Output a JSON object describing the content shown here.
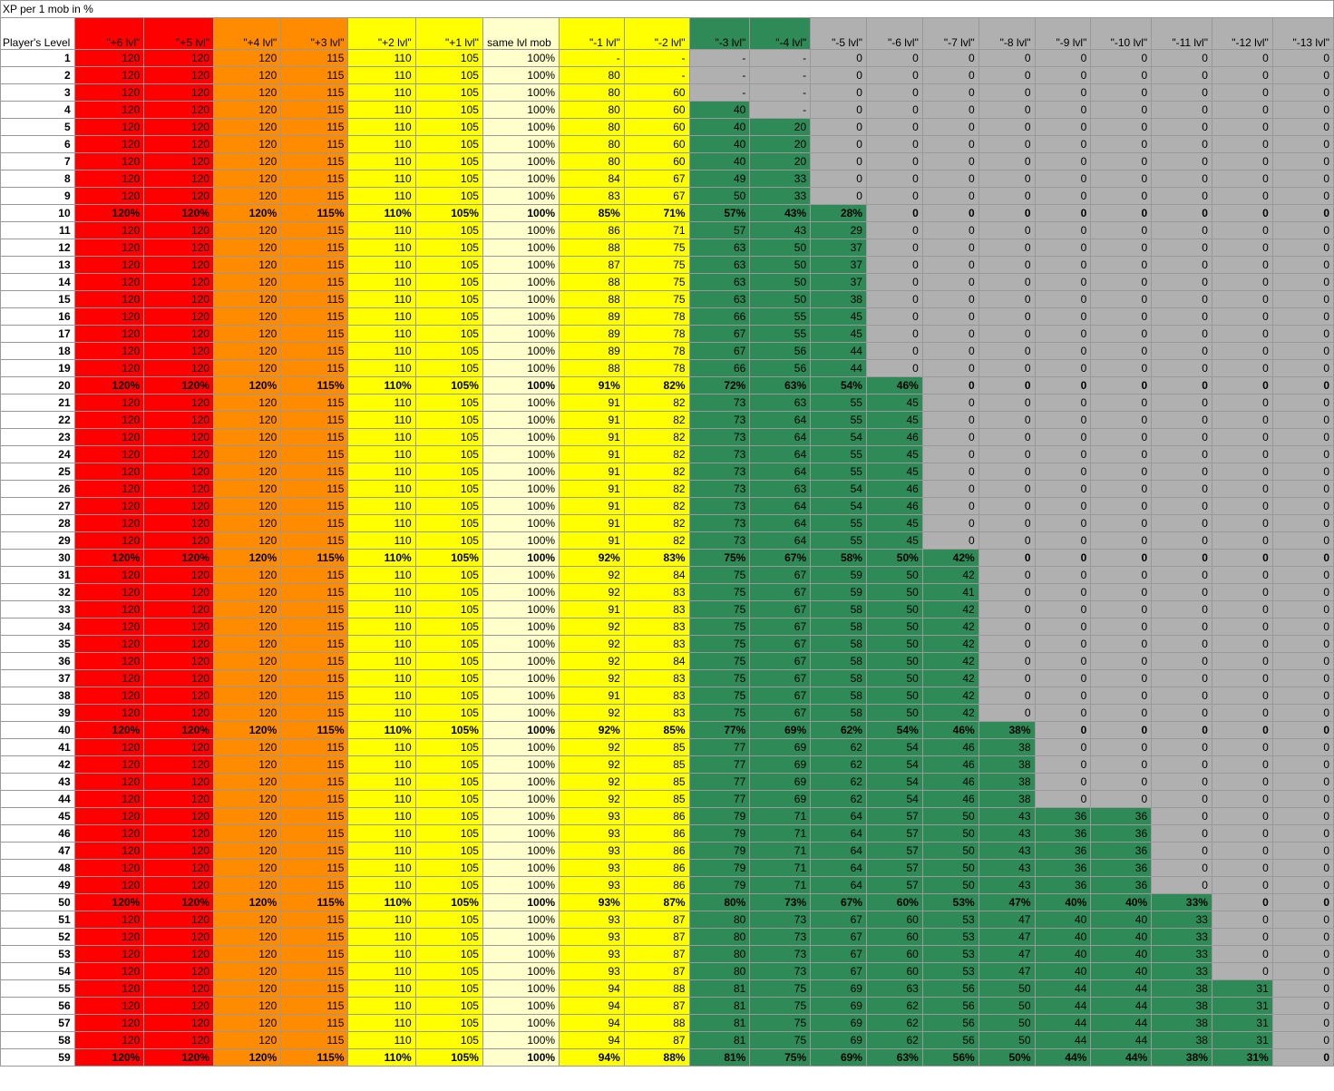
{
  "title": "XP per 1 mob in %",
  "levelHeader": "Player's Level",
  "columns": [
    "\"+6 lvl\"",
    "\"+5 lvl\"",
    "\"+4 lvl\"",
    "\"+3 lvl\"",
    "\"+2 lvl\"",
    "\"+1 lvl\"",
    "same lvl mob",
    "\"-1 lvl\"",
    "\"-2 lvl\"",
    "\"-3 lvl\"",
    "\"-4 lvl\"",
    "\"-5 lvl\"",
    "\"-6 lvl\"",
    "\"-7 lvl\"",
    "\"-8 lvl\"",
    "\"-9 lvl\"",
    "\"-10 lvl\"",
    "\"-11 lvl\"",
    "\"-12 lvl\"",
    "\"-13 lvl\""
  ],
  "colors": {
    "red": "#ff0000",
    "orange": "#ff8c00",
    "yellow": "#ffff00",
    "cream": "#ffffcc",
    "green": "#2e8b57",
    "gray": "#b0b0b0",
    "white": "#ffffff"
  },
  "headerBg": [
    "red",
    "red",
    "orange",
    "orange",
    "yellow",
    "yellow",
    "cream",
    "yellow",
    "yellow",
    "green",
    "green",
    "gray",
    "gray",
    "gray",
    "gray",
    "gray",
    "gray",
    "gray",
    "gray",
    "gray"
  ],
  "baseCols": [
    "120",
    "120",
    "120",
    "115",
    "110",
    "105",
    "100%"
  ],
  "milestonePct": [
    "120%",
    "120%",
    "120%",
    "115%",
    "110%",
    "105%",
    "100%"
  ],
  "rows": [
    {
      "lvl": 1,
      "t": [
        "-",
        "-",
        "-",
        "-",
        "0",
        "0",
        "0",
        "0",
        "0",
        "0",
        "0",
        "0",
        "0"
      ],
      "n": 0
    },
    {
      "lvl": 2,
      "t": [
        "80",
        "-",
        "-",
        "-",
        "0",
        "0",
        "0",
        "0",
        "0",
        "0",
        "0",
        "0",
        "0"
      ],
      "n": 0
    },
    {
      "lvl": 3,
      "t": [
        "80",
        "60",
        "-",
        "-",
        "0",
        "0",
        "0",
        "0",
        "0",
        "0",
        "0",
        "0",
        "0"
      ],
      "n": 0
    },
    {
      "lvl": 4,
      "t": [
        "80",
        "60",
        "40",
        "-",
        "0",
        "0",
        "0",
        "0",
        "0",
        "0",
        "0",
        "0",
        "0"
      ],
      "n": 1
    },
    {
      "lvl": 5,
      "t": [
        "80",
        "60",
        "40",
        "20",
        "0",
        "0",
        "0",
        "0",
        "0",
        "0",
        "0",
        "0",
        "0"
      ],
      "n": 2
    },
    {
      "lvl": 6,
      "t": [
        "80",
        "60",
        "40",
        "20",
        "0",
        "0",
        "0",
        "0",
        "0",
        "0",
        "0",
        "0",
        "0"
      ],
      "n": 2
    },
    {
      "lvl": 7,
      "t": [
        "80",
        "60",
        "40",
        "20",
        "0",
        "0",
        "0",
        "0",
        "0",
        "0",
        "0",
        "0",
        "0"
      ],
      "n": 2
    },
    {
      "lvl": 8,
      "t": [
        "84",
        "67",
        "49",
        "33",
        "0",
        "0",
        "0",
        "0",
        "0",
        "0",
        "0",
        "0",
        "0"
      ],
      "n": 2
    },
    {
      "lvl": 9,
      "t": [
        "83",
        "67",
        "50",
        "33",
        "0",
        "0",
        "0",
        "0",
        "0",
        "0",
        "0",
        "0",
        "0"
      ],
      "n": 2
    },
    {
      "lvl": 10,
      "m": true,
      "t": [
        "85%",
        "71%",
        "57%",
        "43%",
        "28%",
        "0",
        "0",
        "0",
        "0",
        "0",
        "0",
        "0",
        "0"
      ],
      "n": 3
    },
    {
      "lvl": 11,
      "t": [
        "86",
        "71",
        "57",
        "43",
        "29",
        "0",
        "0",
        "0",
        "0",
        "0",
        "0",
        "0",
        "0"
      ],
      "n": 3
    },
    {
      "lvl": 12,
      "t": [
        "88",
        "75",
        "63",
        "50",
        "37",
        "0",
        "0",
        "0",
        "0",
        "0",
        "0",
        "0",
        "0"
      ],
      "n": 3
    },
    {
      "lvl": 13,
      "t": [
        "87",
        "75",
        "63",
        "50",
        "37",
        "0",
        "0",
        "0",
        "0",
        "0",
        "0",
        "0",
        "0"
      ],
      "n": 3
    },
    {
      "lvl": 14,
      "t": [
        "88",
        "75",
        "63",
        "50",
        "37",
        "0",
        "0",
        "0",
        "0",
        "0",
        "0",
        "0",
        "0"
      ],
      "n": 3
    },
    {
      "lvl": 15,
      "t": [
        "88",
        "75",
        "63",
        "50",
        "38",
        "0",
        "0",
        "0",
        "0",
        "0",
        "0",
        "0",
        "0"
      ],
      "n": 3
    },
    {
      "lvl": 16,
      "t": [
        "89",
        "78",
        "66",
        "55",
        "45",
        "0",
        "0",
        "0",
        "0",
        "0",
        "0",
        "0",
        "0"
      ],
      "n": 3
    },
    {
      "lvl": 17,
      "t": [
        "89",
        "78",
        "67",
        "55",
        "45",
        "0",
        "0",
        "0",
        "0",
        "0",
        "0",
        "0",
        "0"
      ],
      "n": 3
    },
    {
      "lvl": 18,
      "t": [
        "89",
        "78",
        "67",
        "56",
        "44",
        "0",
        "0",
        "0",
        "0",
        "0",
        "0",
        "0",
        "0"
      ],
      "n": 3
    },
    {
      "lvl": 19,
      "t": [
        "88",
        "78",
        "66",
        "56",
        "44",
        "0",
        "0",
        "0",
        "0",
        "0",
        "0",
        "0",
        "0"
      ],
      "n": 3
    },
    {
      "lvl": 20,
      "m": true,
      "t": [
        "91%",
        "82%",
        "72%",
        "63%",
        "54%",
        "46%",
        "0",
        "0",
        "0",
        "0",
        "0",
        "0",
        "0"
      ],
      "n": 4
    },
    {
      "lvl": 21,
      "t": [
        "91",
        "82",
        "73",
        "63",
        "55",
        "45",
        "0",
        "0",
        "0",
        "0",
        "0",
        "0",
        "0"
      ],
      "n": 4
    },
    {
      "lvl": 22,
      "t": [
        "91",
        "82",
        "73",
        "64",
        "55",
        "45",
        "0",
        "0",
        "0",
        "0",
        "0",
        "0",
        "0"
      ],
      "n": 4
    },
    {
      "lvl": 23,
      "t": [
        "91",
        "82",
        "73",
        "64",
        "54",
        "46",
        "0",
        "0",
        "0",
        "0",
        "0",
        "0",
        "0"
      ],
      "n": 4
    },
    {
      "lvl": 24,
      "t": [
        "91",
        "82",
        "73",
        "64",
        "55",
        "45",
        "0",
        "0",
        "0",
        "0",
        "0",
        "0",
        "0"
      ],
      "n": 4
    },
    {
      "lvl": 25,
      "t": [
        "91",
        "82",
        "73",
        "64",
        "55",
        "45",
        "0",
        "0",
        "0",
        "0",
        "0",
        "0",
        "0"
      ],
      "n": 4
    },
    {
      "lvl": 26,
      "t": [
        "91",
        "82",
        "73",
        "63",
        "54",
        "46",
        "0",
        "0",
        "0",
        "0",
        "0",
        "0",
        "0"
      ],
      "n": 4
    },
    {
      "lvl": 27,
      "t": [
        "91",
        "82",
        "73",
        "64",
        "54",
        "46",
        "0",
        "0",
        "0",
        "0",
        "0",
        "0",
        "0"
      ],
      "n": 4
    },
    {
      "lvl": 28,
      "t": [
        "91",
        "82",
        "73",
        "64",
        "55",
        "45",
        "0",
        "0",
        "0",
        "0",
        "0",
        "0",
        "0"
      ],
      "n": 4
    },
    {
      "lvl": 29,
      "t": [
        "91",
        "82",
        "73",
        "64",
        "55",
        "45",
        "0",
        "0",
        "0",
        "0",
        "0",
        "0",
        "0"
      ],
      "n": 4
    },
    {
      "lvl": 30,
      "m": true,
      "t": [
        "92%",
        "83%",
        "75%",
        "67%",
        "58%",
        "50%",
        "42%",
        "0",
        "0",
        "0",
        "0",
        "0",
        "0"
      ],
      "n": 5
    },
    {
      "lvl": 31,
      "t": [
        "92",
        "84",
        "75",
        "67",
        "59",
        "50",
        "42",
        "0",
        "0",
        "0",
        "0",
        "0",
        "0"
      ],
      "n": 5
    },
    {
      "lvl": 32,
      "t": [
        "92",
        "83",
        "75",
        "67",
        "59",
        "50",
        "41",
        "0",
        "0",
        "0",
        "0",
        "0",
        "0"
      ],
      "n": 5
    },
    {
      "lvl": 33,
      "t": [
        "91",
        "83",
        "75",
        "67",
        "58",
        "50",
        "42",
        "0",
        "0",
        "0",
        "0",
        "0",
        "0"
      ],
      "n": 5
    },
    {
      "lvl": 34,
      "t": [
        "92",
        "83",
        "75",
        "67",
        "58",
        "50",
        "42",
        "0",
        "0",
        "0",
        "0",
        "0",
        "0"
      ],
      "n": 5
    },
    {
      "lvl": 35,
      "t": [
        "92",
        "83",
        "75",
        "67",
        "58",
        "50",
        "42",
        "0",
        "0",
        "0",
        "0",
        "0",
        "0"
      ],
      "n": 5
    },
    {
      "lvl": 36,
      "t": [
        "92",
        "84",
        "75",
        "67",
        "58",
        "50",
        "42",
        "0",
        "0",
        "0",
        "0",
        "0",
        "0"
      ],
      "n": 5
    },
    {
      "lvl": 37,
      "t": [
        "92",
        "83",
        "75",
        "67",
        "58",
        "50",
        "42",
        "0",
        "0",
        "0",
        "0",
        "0",
        "0"
      ],
      "n": 5
    },
    {
      "lvl": 38,
      "t": [
        "91",
        "83",
        "75",
        "67",
        "58",
        "50",
        "42",
        "0",
        "0",
        "0",
        "0",
        "0",
        "0"
      ],
      "n": 5
    },
    {
      "lvl": 39,
      "t": [
        "92",
        "83",
        "75",
        "67",
        "58",
        "50",
        "42",
        "0",
        "0",
        "0",
        "0",
        "0",
        "0"
      ],
      "n": 5
    },
    {
      "lvl": 40,
      "m": true,
      "t": [
        "92%",
        "85%",
        "77%",
        "69%",
        "62%",
        "54%",
        "46%",
        "38%",
        "0",
        "0",
        "0",
        "0",
        "0"
      ],
      "n": 6
    },
    {
      "lvl": 41,
      "t": [
        "92",
        "85",
        "77",
        "69",
        "62",
        "54",
        "46",
        "38",
        "0",
        "0",
        "0",
        "0",
        "0"
      ],
      "n": 6
    },
    {
      "lvl": 42,
      "t": [
        "92",
        "85",
        "77",
        "69",
        "62",
        "54",
        "46",
        "38",
        "0",
        "0",
        "0",
        "0",
        "0"
      ],
      "n": 6
    },
    {
      "lvl": 43,
      "t": [
        "92",
        "85",
        "77",
        "69",
        "62",
        "54",
        "46",
        "38",
        "0",
        "0",
        "0",
        "0",
        "0"
      ],
      "n": 6
    },
    {
      "lvl": 44,
      "t": [
        "92",
        "85",
        "77",
        "69",
        "62",
        "54",
        "46",
        "38",
        "0",
        "0",
        "0",
        "0",
        "0"
      ],
      "n": 6
    },
    {
      "lvl": 45,
      "t": [
        "93",
        "86",
        "79",
        "71",
        "64",
        "57",
        "50",
        "43",
        "36",
        "36",
        "0",
        "0",
        "0"
      ],
      "n": 8
    },
    {
      "lvl": 46,
      "t": [
        "93",
        "86",
        "79",
        "71",
        "64",
        "57",
        "50",
        "43",
        "36",
        "36",
        "0",
        "0",
        "0"
      ],
      "n": 8
    },
    {
      "lvl": 47,
      "t": [
        "93",
        "86",
        "79",
        "71",
        "64",
        "57",
        "50",
        "43",
        "36",
        "36",
        "0",
        "0",
        "0"
      ],
      "n": 8
    },
    {
      "lvl": 48,
      "t": [
        "93",
        "86",
        "79",
        "71",
        "64",
        "57",
        "50",
        "43",
        "36",
        "36",
        "0",
        "0",
        "0"
      ],
      "n": 8
    },
    {
      "lvl": 49,
      "t": [
        "93",
        "86",
        "79",
        "71",
        "64",
        "57",
        "50",
        "43",
        "36",
        "36",
        "0",
        "0",
        "0"
      ],
      "n": 8
    },
    {
      "lvl": 50,
      "m": true,
      "t": [
        "93%",
        "87%",
        "80%",
        "73%",
        "67%",
        "60%",
        "53%",
        "47%",
        "40%",
        "40%",
        "33%",
        "0",
        "0"
      ],
      "n": 9
    },
    {
      "lvl": 51,
      "t": [
        "93",
        "87",
        "80",
        "73",
        "67",
        "60",
        "53",
        "47",
        "40",
        "40",
        "33",
        "0",
        "0"
      ],
      "n": 9
    },
    {
      "lvl": 52,
      "t": [
        "93",
        "87",
        "80",
        "73",
        "67",
        "60",
        "53",
        "47",
        "40",
        "40",
        "33",
        "0",
        "0"
      ],
      "n": 9
    },
    {
      "lvl": 53,
      "t": [
        "93",
        "87",
        "80",
        "73",
        "67",
        "60",
        "53",
        "47",
        "40",
        "40",
        "33",
        "0",
        "0"
      ],
      "n": 9
    },
    {
      "lvl": 54,
      "t": [
        "93",
        "87",
        "80",
        "73",
        "67",
        "60",
        "53",
        "47",
        "40",
        "40",
        "33",
        "0",
        "0"
      ],
      "n": 9
    },
    {
      "lvl": 55,
      "t": [
        "94",
        "88",
        "81",
        "75",
        "69",
        "63",
        "56",
        "50",
        "44",
        "44",
        "38",
        "31",
        "0"
      ],
      "n": 10
    },
    {
      "lvl": 56,
      "t": [
        "94",
        "87",
        "81",
        "75",
        "69",
        "62",
        "56",
        "50",
        "44",
        "44",
        "38",
        "31",
        "0"
      ],
      "n": 10
    },
    {
      "lvl": 57,
      "t": [
        "94",
        "88",
        "81",
        "75",
        "69",
        "62",
        "56",
        "50",
        "44",
        "44",
        "38",
        "31",
        "0"
      ],
      "n": 10
    },
    {
      "lvl": 58,
      "t": [
        "94",
        "87",
        "81",
        "75",
        "69",
        "62",
        "56",
        "50",
        "44",
        "44",
        "38",
        "31",
        "0"
      ],
      "n": 10
    },
    {
      "lvl": 59,
      "m": true,
      "t": [
        "94%",
        "88%",
        "81%",
        "75%",
        "69%",
        "63%",
        "56%",
        "50%",
        "44%",
        "44%",
        "38%",
        "31%",
        "0"
      ],
      "n": 10
    }
  ]
}
